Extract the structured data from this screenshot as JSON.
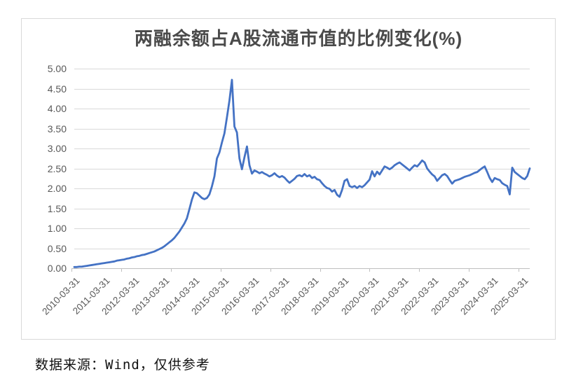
{
  "chart_data": {
    "type": "line",
    "title": "两融余额占A股流通市值的比例变化(%)",
    "xlabel": "",
    "ylabel": "",
    "ylim": [
      0,
      5
    ],
    "y_tick_labels": [
      "0.00",
      "0.50",
      "1.00",
      "1.50",
      "2.00",
      "2.50",
      "3.00",
      "3.50",
      "4.00",
      "4.50",
      "5.00"
    ],
    "x_tick_labels": [
      "2010-03-31",
      "2011-03-31",
      "2012-03-31",
      "2013-03-31",
      "2014-03-31",
      "2015-03-31",
      "2016-03-31",
      "2017-03-31",
      "2018-03-31",
      "2019-03-31",
      "2020-03-31",
      "2021-03-31",
      "2022-03-31",
      "2023-03-31",
      "2024-03-31",
      "2025-03-31"
    ],
    "x_label_rotation": -45,
    "grid": true,
    "legend": false,
    "line_color": "#4472C4",
    "series_note": "monthly approximation of the dense daily series shown",
    "x_monthly": [
      "2010-03",
      "2010-04",
      "2010-05",
      "2010-06",
      "2010-07",
      "2010-08",
      "2010-09",
      "2010-10",
      "2010-11",
      "2010-12",
      "2011-01",
      "2011-02",
      "2011-03",
      "2011-04",
      "2011-05",
      "2011-06",
      "2011-07",
      "2011-08",
      "2011-09",
      "2011-10",
      "2011-11",
      "2011-12",
      "2012-01",
      "2012-02",
      "2012-03",
      "2012-04",
      "2012-05",
      "2012-06",
      "2012-07",
      "2012-08",
      "2012-09",
      "2012-10",
      "2012-11",
      "2012-12",
      "2013-01",
      "2013-02",
      "2013-03",
      "2013-04",
      "2013-05",
      "2013-06",
      "2013-07",
      "2013-08",
      "2013-09",
      "2013-10",
      "2013-11",
      "2013-12",
      "2014-01",
      "2014-02",
      "2014-03",
      "2014-04",
      "2014-05",
      "2014-06",
      "2014-07",
      "2014-08",
      "2014-09",
      "2014-10",
      "2014-11",
      "2014-12",
      "2015-01",
      "2015-02",
      "2015-03",
      "2015-04",
      "2015-05",
      "2015-06",
      "2015-07",
      "2015-08",
      "2015-09",
      "2015-10",
      "2015-11",
      "2015-12",
      "2016-01",
      "2016-02",
      "2016-03",
      "2016-04",
      "2016-05",
      "2016-06",
      "2016-07",
      "2016-08",
      "2016-09",
      "2016-10",
      "2016-11",
      "2016-12",
      "2017-01",
      "2017-02",
      "2017-03",
      "2017-04",
      "2017-05",
      "2017-06",
      "2017-07",
      "2017-08",
      "2017-09",
      "2017-10",
      "2017-11",
      "2017-12",
      "2018-01",
      "2018-02",
      "2018-03",
      "2018-04",
      "2018-05",
      "2018-06",
      "2018-07",
      "2018-08",
      "2018-09",
      "2018-10",
      "2018-11",
      "2018-12",
      "2019-01",
      "2019-02",
      "2019-03",
      "2019-04",
      "2019-05",
      "2019-06",
      "2019-07",
      "2019-08",
      "2019-09",
      "2019-10",
      "2019-11",
      "2019-12",
      "2020-01",
      "2020-02",
      "2020-03",
      "2020-04",
      "2020-05",
      "2020-06",
      "2020-07",
      "2020-08",
      "2020-09",
      "2020-10",
      "2020-11",
      "2020-12",
      "2021-01",
      "2021-02",
      "2021-03",
      "2021-04",
      "2021-05",
      "2021-06",
      "2021-07",
      "2021-08",
      "2021-09",
      "2021-10",
      "2021-11",
      "2021-12",
      "2022-01",
      "2022-02",
      "2022-03",
      "2022-04",
      "2022-05",
      "2022-06",
      "2022-07",
      "2022-08",
      "2022-09",
      "2022-10",
      "2022-11",
      "2022-12",
      "2023-01",
      "2023-02",
      "2023-03",
      "2023-04",
      "2023-05",
      "2023-06",
      "2023-07",
      "2023-08",
      "2023-09",
      "2023-10",
      "2023-11",
      "2023-12",
      "2024-01",
      "2024-02",
      "2024-03",
      "2024-04",
      "2024-05",
      "2024-06",
      "2024-07",
      "2024-08",
      "2024-09",
      "2024-10",
      "2024-11",
      "2024-12",
      "2025-01",
      "2025-02",
      "2025-03",
      "2025-04",
      "2025-05"
    ],
    "values": [
      0.03,
      0.03,
      0.04,
      0.04,
      0.05,
      0.06,
      0.07,
      0.08,
      0.09,
      0.1,
      0.11,
      0.12,
      0.13,
      0.14,
      0.15,
      0.16,
      0.17,
      0.19,
      0.2,
      0.21,
      0.22,
      0.24,
      0.25,
      0.27,
      0.28,
      0.3,
      0.31,
      0.33,
      0.34,
      0.36,
      0.38,
      0.4,
      0.42,
      0.45,
      0.48,
      0.51,
      0.55,
      0.6,
      0.65,
      0.7,
      0.76,
      0.84,
      0.92,
      1.02,
      1.12,
      1.25,
      1.48,
      1.72,
      1.9,
      1.88,
      1.82,
      1.76,
      1.73,
      1.76,
      1.85,
      2.05,
      2.3,
      2.75,
      2.9,
      3.15,
      3.38,
      3.78,
      4.2,
      4.72,
      3.55,
      3.4,
      2.75,
      2.48,
      2.78,
      3.05,
      2.58,
      2.37,
      2.45,
      2.42,
      2.38,
      2.41,
      2.37,
      2.34,
      2.3,
      2.33,
      2.38,
      2.32,
      2.28,
      2.31,
      2.27,
      2.2,
      2.14,
      2.19,
      2.24,
      2.31,
      2.33,
      2.3,
      2.36,
      2.3,
      2.33,
      2.26,
      2.29,
      2.23,
      2.21,
      2.13,
      2.06,
      2.01,
      1.99,
      1.92,
      1.96,
      1.84,
      1.79,
      1.96,
      2.19,
      2.23,
      2.06,
      2.03,
      2.06,
      2.01,
      2.06,
      2.03,
      2.08,
      2.15,
      2.22,
      2.43,
      2.3,
      2.42,
      2.35,
      2.45,
      2.55,
      2.52,
      2.48,
      2.52,
      2.58,
      2.62,
      2.65,
      2.6,
      2.55,
      2.5,
      2.45,
      2.52,
      2.58,
      2.55,
      2.62,
      2.7,
      2.65,
      2.5,
      2.42,
      2.35,
      2.3,
      2.19,
      2.26,
      2.33,
      2.36,
      2.31,
      2.21,
      2.12,
      2.19,
      2.21,
      2.23,
      2.26,
      2.29,
      2.31,
      2.33,
      2.36,
      2.39,
      2.41,
      2.46,
      2.51,
      2.55,
      2.41,
      2.26,
      2.16,
      2.26,
      2.23,
      2.21,
      2.13,
      2.09,
      2.06,
      1.85,
      2.52,
      2.41,
      2.36,
      2.31,
      2.26,
      2.23,
      2.31,
      2.5
    ]
  },
  "style": {
    "gridline_color": "#D9D9D9",
    "axis_color": "#BFBFBF",
    "frame_border_color": "#D9D9D9",
    "title_color": "#4A4A4A",
    "tick_label_color": "#595959"
  },
  "footer": {
    "source_note": "数据来源：Wind，仅供参考"
  }
}
